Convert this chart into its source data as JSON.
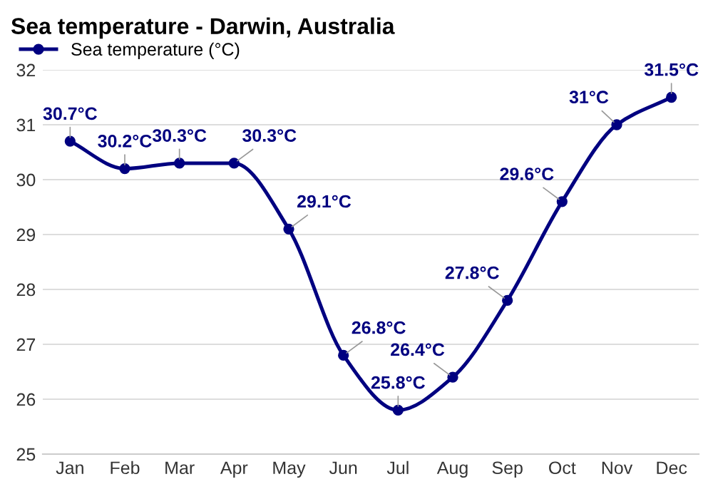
{
  "chart_data": {
    "type": "line",
    "title": "Sea temperature - Darwin, Australia",
    "categories": [
      "Jan",
      "Feb",
      "Mar",
      "Apr",
      "May",
      "Jun",
      "Jul",
      "Aug",
      "Sep",
      "Oct",
      "Nov",
      "Dec"
    ],
    "series": [
      {
        "name": "Sea temperature (°C)",
        "color": "#000080",
        "values": [
          30.7,
          30.2,
          30.3,
          30.3,
          29.1,
          26.8,
          25.8,
          26.4,
          27.8,
          29.6,
          31,
          31.5
        ],
        "value_labels": [
          "30.7°C",
          "30.2°C",
          "30.3°C",
          "30.3°C",
          "29.1°C",
          "26.8°C",
          "25.8°C",
          "26.4°C",
          "27.8°C",
          "29.6°C",
          "31°C",
          "31.5°C"
        ]
      }
    ],
    "ylim": [
      25,
      32
    ],
    "yticks": [
      25,
      26,
      27,
      28,
      29,
      30,
      31,
      32
    ],
    "grid": "y",
    "legend": "top left",
    "marker": "circle",
    "line_style": "solid"
  }
}
